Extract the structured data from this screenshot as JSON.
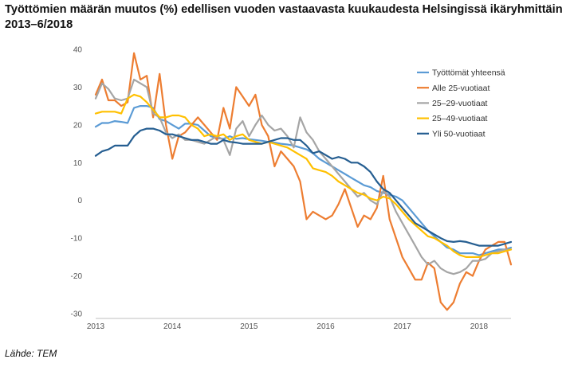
{
  "title": "Työttömien määrän muutos (%) edellisen vuoden vastaavasta kuukaudesta Helsingissä ikäryhmittäin 2013–6/2018",
  "source": "Lähde: TEM",
  "chart_data": {
    "type": "line",
    "title": "Työttömien määrän muutos (%) edellisen vuoden vastaavasta kuukaudesta Helsingissä ikäryhmittäin 2013–6/2018",
    "xlabel": "",
    "ylabel": "",
    "x_tick_labels": [
      "2013",
      "2014",
      "2015",
      "2016",
      "2017",
      "2018"
    ],
    "y_ticks": [
      40,
      30,
      20,
      10,
      0,
      -10,
      -20,
      -30
    ],
    "ylim": [
      -30,
      40
    ],
    "x_start": "2013-01",
    "x_end": "2018-06",
    "grid": false,
    "legend_position": "right",
    "series": [
      {
        "name": "Työttömät yhteensä",
        "color": "#5B9BD5",
        "values": [
          19.5,
          20.5,
          20.5,
          21,
          20.8,
          20.5,
          24.5,
          25,
          25,
          24.5,
          21.5,
          21,
          20,
          19,
          20.3,
          20.3,
          20,
          18.5,
          17,
          16.5,
          16.3,
          17,
          16.3,
          16.5,
          16.2,
          16,
          15.8,
          15.5,
          15.3,
          15,
          14.8,
          14.5,
          14,
          13.5,
          12.5,
          11,
          10,
          9,
          8,
          7,
          6,
          5,
          4,
          3.5,
          2.5,
          2,
          1.5,
          1,
          0,
          -2,
          -4,
          -6,
          -8,
          -9.5,
          -11,
          -12.5,
          -13,
          -14,
          -14,
          -14,
          -14.5,
          -14,
          -13.5,
          -13,
          -13,
          -12.5
        ]
      },
      {
        "name": "Alle 25-vuotiaat",
        "color": "#ED7D31",
        "values": [
          28,
          32,
          26.5,
          26.5,
          25,
          26,
          39,
          32,
          33,
          22,
          33.5,
          20,
          11,
          17,
          18,
          20,
          22,
          20,
          18,
          16,
          24.5,
          19,
          30,
          27.5,
          25,
          28,
          20,
          17,
          9,
          13,
          11,
          9,
          5,
          -5,
          -3,
          -4,
          -5,
          -4,
          -1,
          3,
          -2,
          -7,
          -4,
          -5,
          -2,
          6.5,
          -5,
          -10,
          -15,
          -18,
          -21,
          -21,
          -16.5,
          -18,
          -27,
          -29,
          -27,
          -22,
          -19,
          -20,
          -16,
          -13,
          -12,
          -11,
          -11,
          -17
        ]
      },
      {
        "name": "25–29-vuotiaat",
        "color": "#A5A5A5",
        "values": [
          27,
          31,
          29.5,
          27,
          26.5,
          27,
          32,
          31,
          30,
          23,
          22,
          18,
          16.5,
          17.5,
          16,
          16,
          15.5,
          15,
          16,
          17,
          16,
          12,
          19,
          21,
          17,
          20,
          22.5,
          20,
          18.5,
          19,
          17,
          14,
          22,
          18,
          16,
          13,
          11,
          9,
          7,
          5,
          3,
          1,
          2,
          0,
          -1,
          2.5,
          1,
          -3,
          -6,
          -9,
          -12,
          -15,
          -17,
          -16,
          -18,
          -19,
          -19.5,
          -19,
          -18,
          -16,
          -16,
          -15.5,
          -14,
          -13.5,
          -13,
          -13
        ]
      },
      {
        "name": "25–49-vuotiaat",
        "color": "#FFC000",
        "values": [
          23,
          23.5,
          23.5,
          23.5,
          23,
          27,
          28,
          27.5,
          26,
          24,
          22,
          22,
          22.5,
          22.5,
          22,
          20,
          19,
          17,
          17.5,
          17,
          17.5,
          16,
          17,
          17.5,
          16,
          15.5,
          15,
          15.5,
          15,
          14.5,
          14,
          13,
          12,
          11,
          8.5,
          8,
          7.5,
          6.5,
          5,
          4,
          3,
          2,
          1.5,
          0.5,
          0,
          1,
          0.5,
          -1,
          -3,
          -5,
          -6.5,
          -8,
          -9.5,
          -10,
          -11,
          -12,
          -13.5,
          -14.5,
          -15,
          -15,
          -15,
          -14.5,
          -14,
          -14,
          -13.5,
          -13
        ]
      },
      {
        "name": "Yli 50-vuotiaat",
        "color": "#255E91",
        "values": [
          11.8,
          13,
          13.5,
          14.5,
          14.5,
          14.5,
          17,
          18.5,
          19,
          19,
          18.5,
          17.5,
          17.5,
          17,
          16.5,
          16,
          16,
          15.5,
          15,
          15,
          16,
          15.5,
          15.3,
          15,
          15,
          15,
          15,
          15.5,
          16,
          16.5,
          16.5,
          16,
          16,
          14.5,
          12.5,
          13,
          12,
          11,
          11.5,
          11,
          10,
          10,
          9,
          7.5,
          5,
          3,
          2,
          0,
          -2,
          -4,
          -6,
          -7,
          -8,
          -9,
          -10,
          -10.8,
          -11,
          -10.8,
          -11,
          -11.5,
          -12,
          -12,
          -12,
          -12,
          -11.5,
          -11
        ]
      }
    ]
  }
}
